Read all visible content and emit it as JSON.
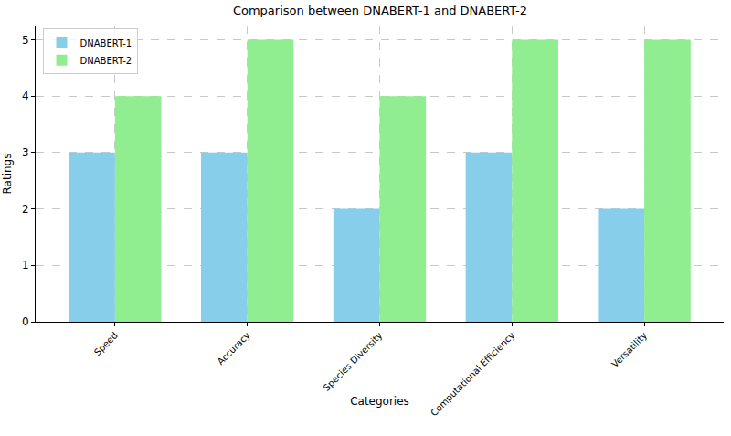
{
  "chart_data": {
    "type": "bar",
    "title": "Comparison between DNABERT-1 and DNABERT-2",
    "x_label": "Categories",
    "y_label": "Ratings",
    "categories": [
      "Speed",
      "Accuracy",
      "Species Diversity",
      "Computational Efficiency",
      "Versatility"
    ],
    "series": [
      {
        "name": "DNABERT-1",
        "color": "#87ceeb",
        "values": [
          3,
          3,
          2,
          3,
          2
        ]
      },
      {
        "name": "DNABERT-2",
        "color": "#90ee90",
        "values": [
          4,
          5,
          4,
          5,
          5
        ]
      }
    ],
    "ylim": [
      0,
      5.25
    ],
    "yticks": [
      0,
      1,
      2,
      3,
      4,
      5
    ],
    "grid": true,
    "legend": "upper left"
  }
}
